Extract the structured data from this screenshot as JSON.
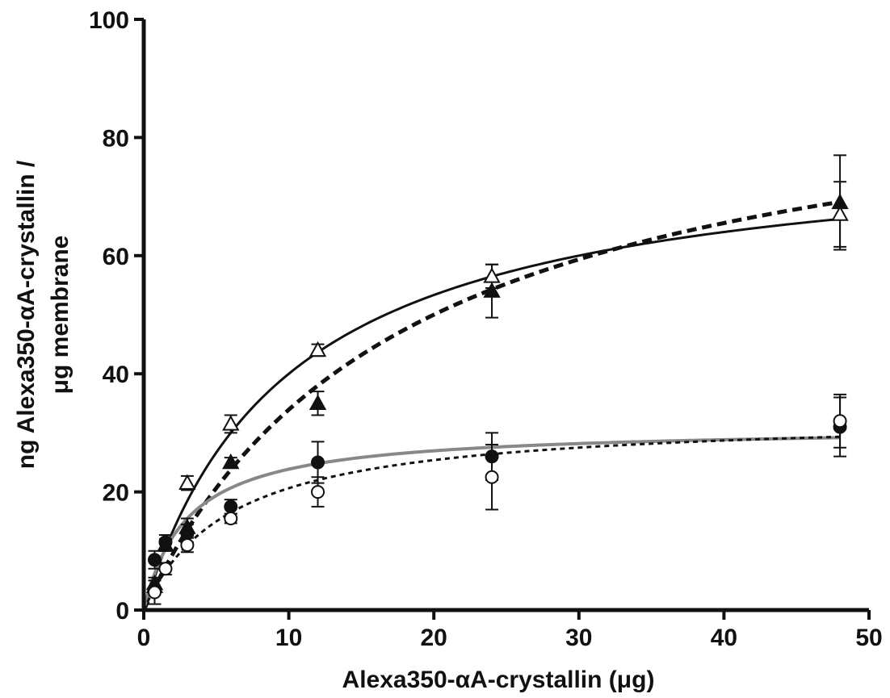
{
  "colors": {
    "axis": "#111111",
    "black_series": "#111111",
    "gray_fit": "#888888",
    "marker_fill_open": "#ffffff"
  },
  "chart_data": {
    "type": "scatter",
    "title": "",
    "xlabel": "Alexa350-αA-crystallin (μg)",
    "ylabel_lines": [
      "ng Alexa350-αA-crystallin /",
      "μg membrane"
    ],
    "xlim": [
      0,
      50
    ],
    "ylim": [
      0,
      100
    ],
    "xticks": [
      0,
      10,
      20,
      30,
      40,
      50
    ],
    "yticks": [
      0,
      20,
      40,
      60,
      80,
      100
    ],
    "xtick_labels": [
      "0",
      "10",
      "20",
      "30",
      "40",
      "50"
    ],
    "ytick_labels": [
      "0",
      "20",
      "40",
      "60",
      "80",
      "100"
    ],
    "grid": false,
    "legend": "none",
    "series": [
      {
        "marker": "open-triangle",
        "x": [
          0.75,
          1.5,
          3,
          6,
          12,
          24,
          48
        ],
        "y": [
          4,
          11,
          21.5,
          31.5,
          44,
          56.5,
          67
        ],
        "yerr": [
          1,
          1,
          1.2,
          1.5,
          1,
          2,
          5.5
        ],
        "fit": {
          "model": "hyperbolic",
          "bmax": 80,
          "kd": 10,
          "style": "solid",
          "color": "#111111"
        }
      },
      {
        "marker": "filled-triangle",
        "x": [
          0.75,
          1.5,
          3,
          6,
          12,
          24,
          48
        ],
        "y": [
          4.5,
          11,
          14,
          25,
          35,
          54,
          69
        ],
        "yerr": [
          1,
          1,
          1.5,
          0.8,
          2,
          4.5,
          8
        ],
        "fit": {
          "model": "hyperbolic",
          "bmax": 95,
          "kd": 18,
          "style": "dashed",
          "color": "#111111"
        }
      },
      {
        "marker": "filled-circle",
        "x": [
          0.75,
          1.5,
          3,
          6,
          12,
          24,
          48
        ],
        "y": [
          8.5,
          11.5,
          13,
          17.5,
          25,
          26,
          31
        ],
        "yerr": [
          1.5,
          1.2,
          1.5,
          1.2,
          3.5,
          4,
          5
        ],
        "fit": {
          "model": "hyperbolic",
          "bmax": 31,
          "kd": 3,
          "style": "solid",
          "color": "#888888"
        }
      },
      {
        "marker": "open-circle",
        "x": [
          0.75,
          1.5,
          3,
          6,
          12,
          24,
          48
        ],
        "y": [
          3,
          7,
          11,
          15.5,
          20,
          22.5,
          32
        ],
        "yerr": [
          2,
          1,
          1.2,
          0.8,
          2.5,
          5.5,
          4.5
        ],
        "fit": {
          "model": "hyperbolic",
          "bmax": 33,
          "kd": 6,
          "style": "dotted",
          "color": "#111111"
        }
      }
    ]
  }
}
